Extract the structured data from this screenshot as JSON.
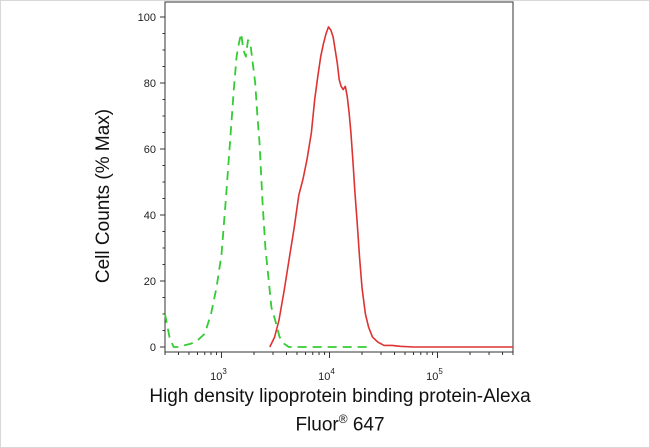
{
  "chart_data": {
    "type": "line",
    "title": "",
    "ylabel": "Cell Counts (% Max)",
    "xlabel": {
      "line1": "High density lipoprotein binding protein-Alexa",
      "line2_prefix": "Fluor",
      "line2_sup": "®",
      "line2_suffix": " 647"
    },
    "x_scale": "log",
    "xlim": [
      300,
      500000
    ],
    "ylim": [
      0,
      100
    ],
    "x_ticks": [
      {
        "base": "10",
        "exp": "3",
        "value": 1000
      },
      {
        "base": "10",
        "exp": "4",
        "value": 10000
      },
      {
        "base": "10",
        "exp": "5",
        "value": 100000
      }
    ],
    "y_ticks": [
      "0",
      "20",
      "40",
      "60",
      "80",
      "100"
    ],
    "grid": false,
    "legend": "none",
    "series": [
      {
        "color": "#33cc33",
        "style": "dashed",
        "x": [
          300,
          330,
          360,
          400,
          450,
          520,
          600,
          700,
          800,
          900,
          1000,
          1100,
          1200,
          1300,
          1380,
          1450,
          1520,
          1600,
          1680,
          1760,
          1850,
          1950,
          2050,
          2150,
          2250,
          2400,
          2550,
          2700,
          2900,
          3150,
          3450,
          3800,
          4200,
          5000,
          7000,
          10000,
          15000,
          25000
        ],
        "y": [
          10,
          3,
          0,
          0,
          0.5,
          1,
          2,
          4,
          10,
          18,
          28,
          45,
          62,
          78,
          88,
          92,
          95,
          90,
          88,
          93,
          92,
          86,
          80,
          70,
          62,
          44,
          30,
          22,
          12,
          8,
          3,
          1,
          0,
          0,
          0,
          0,
          0,
          0
        ]
      },
      {
        "color": "#dd3333",
        "style": "solid",
        "x": [
          2800,
          3100,
          3400,
          3800,
          4200,
          4700,
          5200,
          5700,
          6200,
          6800,
          7300,
          7800,
          8300,
          8800,
          9300,
          9800,
          10300,
          10800,
          11300,
          11800,
          12300,
          12800,
          13400,
          14000,
          14600,
          15200,
          15800,
          16500,
          17200,
          18000,
          19000,
          20000,
          21500,
          23000,
          25000,
          28000,
          32000,
          38000,
          45000,
          60000,
          100000,
          200000,
          500000
        ],
        "y": [
          0,
          3,
          8,
          17,
          26,
          36,
          46,
          51,
          57,
          65,
          75,
          82,
          88,
          92,
          95,
          97,
          96,
          94,
          90,
          86,
          81,
          79,
          78,
          79,
          76,
          71,
          65,
          56,
          47,
          38,
          27,
          18,
          10,
          6,
          3,
          1.5,
          0.5,
          0.5,
          0.2,
          0,
          0,
          0,
          0
        ]
      }
    ]
  }
}
